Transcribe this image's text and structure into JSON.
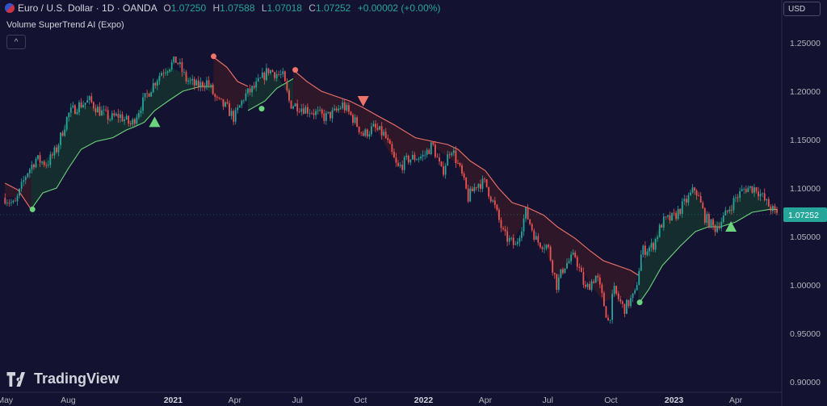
{
  "header": {
    "symbol": "Euro / U.S. Dollar · 1D · OANDA",
    "o_label": "O",
    "o_value": "1.07250",
    "h_label": "H",
    "h_value": "1.07588",
    "l_label": "L",
    "l_value": "1.07018",
    "c_label": "C",
    "c_value": "1.07252",
    "change": "+0.00002 (+0.00%)"
  },
  "indicator": {
    "name": "Volume SuperTrend AI (Expo)",
    "collapse_icon": "chevron-up-icon"
  },
  "currency_button": "USD",
  "branding": "TradingView",
  "colors": {
    "background": "#131230",
    "up": "#26a69a",
    "down": "#ef5350",
    "bull_line": "#6cd47e",
    "bear_line": "#f0736a",
    "bull_fill": "#16312f",
    "bear_fill": "#33182a"
  },
  "chart_data": {
    "type": "line",
    "title": "",
    "xlabel": "",
    "ylabel": "",
    "x_ticks": [
      "May",
      "Aug",
      "2021",
      "Apr",
      "Jul",
      "Oct",
      "2022",
      "Apr",
      "Jul",
      "Oct",
      "2023",
      "Apr"
    ],
    "y_ticks": [
      "1.25000",
      "1.20000",
      "1.15000",
      "1.10000",
      "1.05000",
      "1.00000",
      "0.95000",
      "0.90000"
    ],
    "ylim": [
      0.9,
      1.25
    ],
    "last_price": "1.07252",
    "grid": false,
    "legend": "none",
    "price_series": {
      "name": "",
      "points": [
        [
          "2020-05-01",
          1.09
        ],
        [
          "2020-05-15",
          1.082
        ],
        [
          "2020-06-01",
          1.115
        ],
        [
          "2020-06-15",
          1.13
        ],
        [
          "2020-07-01",
          1.125
        ],
        [
          "2020-07-15",
          1.14
        ],
        [
          "2020-08-01",
          1.176
        ],
        [
          "2020-08-15",
          1.185
        ],
        [
          "2020-09-01",
          1.19
        ],
        [
          "2020-09-15",
          1.18
        ],
        [
          "2020-10-01",
          1.172
        ],
        [
          "2020-10-15",
          1.175
        ],
        [
          "2020-11-01",
          1.165
        ],
        [
          "2020-11-15",
          1.185
        ],
        [
          "2020-12-01",
          1.205
        ],
        [
          "2020-12-15",
          1.22
        ],
        [
          "2021-01-06",
          1.232
        ],
        [
          "2021-01-20",
          1.212
        ],
        [
          "2021-02-05",
          1.205
        ],
        [
          "2021-02-20",
          1.21
        ],
        [
          "2021-03-05",
          1.19
        ],
        [
          "2021-03-20",
          1.183
        ],
        [
          "2021-03-31",
          1.172
        ],
        [
          "2021-04-15",
          1.195
        ],
        [
          "2021-05-01",
          1.205
        ],
        [
          "2021-05-20",
          1.222
        ],
        [
          "2021-06-10",
          1.215
        ],
        [
          "2021-06-20",
          1.187
        ],
        [
          "2021-07-01",
          1.185
        ],
        [
          "2021-07-20",
          1.18
        ],
        [
          "2021-08-10",
          1.173
        ],
        [
          "2021-08-25",
          1.178
        ],
        [
          "2021-09-05",
          1.186
        ],
        [
          "2021-09-20",
          1.172
        ],
        [
          "2021-10-05",
          1.155
        ],
        [
          "2021-10-20",
          1.162
        ],
        [
          "2021-11-05",
          1.155
        ],
        [
          "2021-11-24",
          1.12
        ],
        [
          "2021-12-10",
          1.13
        ],
        [
          "2022-01-01",
          1.133
        ],
        [
          "2022-01-14",
          1.145
        ],
        [
          "2022-01-28",
          1.115
        ],
        [
          "2022-02-10",
          1.143
        ],
        [
          "2022-02-25",
          1.115
        ],
        [
          "2022-03-07",
          1.09
        ],
        [
          "2022-03-20",
          1.105
        ],
        [
          "2022-04-01",
          1.105
        ],
        [
          "2022-04-15",
          1.08
        ],
        [
          "2022-04-28",
          1.051
        ],
        [
          "2022-05-15",
          1.04
        ],
        [
          "2022-05-30",
          1.075
        ],
        [
          "2022-06-15",
          1.045
        ],
        [
          "2022-07-01",
          1.04
        ],
        [
          "2022-07-14",
          1.0
        ],
        [
          "2022-07-25",
          1.02
        ],
        [
          "2022-08-10",
          1.03
        ],
        [
          "2022-08-25",
          0.995
        ],
        [
          "2022-09-10",
          1.01
        ],
        [
          "2022-09-28",
          0.96
        ],
        [
          "2022-10-05",
          0.995
        ],
        [
          "2022-10-20",
          0.975
        ],
        [
          "2022-11-05",
          0.99
        ],
        [
          "2022-11-15",
          1.035
        ],
        [
          "2022-12-01",
          1.04
        ],
        [
          "2022-12-15",
          1.065
        ],
        [
          "2023-01-01",
          1.07
        ],
        [
          "2023-01-15",
          1.083
        ],
        [
          "2023-02-01",
          1.1
        ],
        [
          "2023-02-15",
          1.07
        ],
        [
          "2023-03-01",
          1.058
        ],
        [
          "2023-03-15",
          1.07
        ],
        [
          "2023-04-01",
          1.09
        ],
        [
          "2023-04-15",
          1.1
        ],
        [
          "2023-05-01",
          1.1
        ],
        [
          "2023-05-15",
          1.085
        ],
        [
          "2023-05-31",
          1.0725
        ]
      ]
    },
    "supertrend": [
      {
        "trend": "down",
        "points": [
          [
            "2020-05-01",
            1.105
          ],
          [
            "2020-05-20",
            1.098
          ],
          [
            "2020-06-08",
            1.078
          ]
        ]
      },
      {
        "trend": "up",
        "points": [
          [
            "2020-06-08",
            1.078
          ],
          [
            "2020-06-25",
            1.095
          ],
          [
            "2020-07-15",
            1.1
          ],
          [
            "2020-08-01",
            1.12
          ],
          [
            "2020-08-20",
            1.14
          ],
          [
            "2020-09-10",
            1.148
          ],
          [
            "2020-10-05",
            1.152
          ],
          [
            "2020-10-25",
            1.16
          ],
          [
            "2020-11-05",
            1.163
          ],
          [
            "2020-11-20",
            1.168
          ],
          [
            "2020-12-05",
            1.18
          ],
          [
            "2020-12-25",
            1.19
          ],
          [
            "2021-01-15",
            1.2
          ],
          [
            "2021-02-10",
            1.205
          ],
          [
            "2021-03-01",
            1.205
          ]
        ]
      },
      {
        "trend": "down",
        "points": [
          [
            "2021-03-01",
            1.235
          ],
          [
            "2021-03-20",
            1.225
          ],
          [
            "2021-04-05",
            1.21
          ],
          [
            "2021-04-20",
            1.205
          ]
        ]
      },
      {
        "trend": "up",
        "points": [
          [
            "2021-04-20",
            1.18
          ],
          [
            "2021-05-15",
            1.19
          ],
          [
            "2021-06-01",
            1.203
          ],
          [
            "2021-06-25",
            1.213
          ]
        ]
      },
      {
        "trend": "down",
        "points": [
          [
            "2021-06-25",
            1.222
          ],
          [
            "2021-07-15",
            1.21
          ],
          [
            "2021-08-05",
            1.2
          ],
          [
            "2021-08-25",
            1.195
          ],
          [
            "2021-09-15",
            1.19
          ],
          [
            "2021-10-05",
            1.183
          ],
          [
            "2021-10-25",
            1.175
          ],
          [
            "2021-11-20",
            1.165
          ],
          [
            "2021-12-20",
            1.152
          ],
          [
            "2022-01-15",
            1.148
          ],
          [
            "2022-02-05",
            1.145
          ],
          [
            "2022-02-20",
            1.14
          ],
          [
            "2022-03-10",
            1.128
          ],
          [
            "2022-04-01",
            1.118
          ],
          [
            "2022-04-20",
            1.1
          ],
          [
            "2022-05-10",
            1.085
          ],
          [
            "2022-06-01",
            1.08
          ],
          [
            "2022-06-25",
            1.072
          ],
          [
            "2022-07-15",
            1.06
          ],
          [
            "2022-08-10",
            1.048
          ],
          [
            "2022-09-01",
            1.035
          ],
          [
            "2022-09-20",
            1.025
          ],
          [
            "2022-10-10",
            1.02
          ],
          [
            "2022-10-30",
            1.015
          ],
          [
            "2022-11-10",
            1.01
          ]
        ]
      },
      {
        "trend": "up",
        "points": [
          [
            "2022-11-10",
            0.98
          ],
          [
            "2022-11-25",
            0.995
          ],
          [
            "2022-12-15",
            1.02
          ],
          [
            "2023-01-10",
            1.04
          ],
          [
            "2023-02-01",
            1.055
          ],
          [
            "2023-02-20",
            1.06
          ],
          [
            "2023-03-10",
            1.06
          ],
          [
            "2023-04-01",
            1.065
          ],
          [
            "2023-04-25",
            1.075
          ],
          [
            "2023-05-20",
            1.078
          ],
          [
            "2023-05-31",
            1.078
          ]
        ]
      }
    ],
    "markers": [
      {
        "kind": "dot",
        "trend": "up",
        "date": "2020-06-10",
        "value": 1.078
      },
      {
        "kind": "triangle-up",
        "date": "2020-12-05",
        "value": 1.168
      },
      {
        "kind": "dot",
        "trend": "down",
        "date": "2021-03-01",
        "value": 1.236
      },
      {
        "kind": "dot",
        "trend": "up",
        "date": "2021-05-10",
        "value": 1.182
      },
      {
        "kind": "dot",
        "trend": "down",
        "date": "2021-06-28",
        "value": 1.222
      },
      {
        "kind": "triangle-down",
        "date": "2021-10-05",
        "value": 1.19
      },
      {
        "kind": "dot",
        "trend": "up",
        "date": "2022-11-12",
        "value": 0.982
      },
      {
        "kind": "triangle-up",
        "date": "2023-03-25",
        "value": 1.06
      }
    ]
  }
}
